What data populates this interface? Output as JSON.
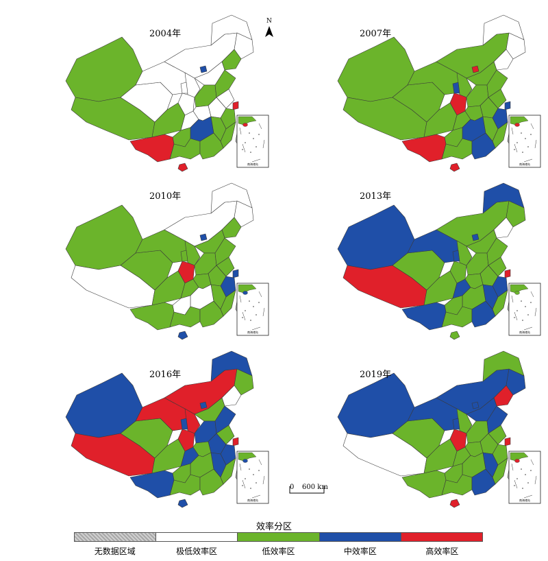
{
  "figure": {
    "north_label": "N",
    "scale": {
      "zero": "0",
      "distance": "600 km"
    },
    "inset_label": "南海诸岛"
  },
  "legend": {
    "title": "效率分区",
    "classes": [
      {
        "label": "无数据区域",
        "color": "#b8b8b8"
      },
      {
        "label": "极低效率区",
        "color": "#ffffff"
      },
      {
        "label": "低效率区",
        "color": "#6bb42b"
      },
      {
        "label": "中效率区",
        "color": "#1f4fa8"
      },
      {
        "label": "高效率区",
        "color": "#e0202a"
      }
    ]
  },
  "colors": {
    "none": "#b8b8b8",
    "very_low": "#ffffff",
    "low": "#6bb42b",
    "mid": "#1f4fa8",
    "high": "#e0202a",
    "border": "#333333"
  },
  "panels": [
    {
      "year": "2004年",
      "regions": {
        "xinjiang": "low",
        "xizang": "low",
        "qinghai": "very_low",
        "gansu": "very_low",
        "neimenggu": "very_low",
        "heilongjiang": "very_low",
        "jilin": "very_low",
        "liaoning": "low",
        "beijing": "mid",
        "hebei": "very_low",
        "shanxi": "very_low",
        "shaanxi": "very_low",
        "ningxia": "very_low",
        "henan": "low",
        "shandong": "low",
        "jiangsu": "very_low",
        "anhui": "very_low",
        "zhejiang": "low",
        "sichuan": "low",
        "chongqing": "very_low",
        "hubei": "very_low",
        "hunan": "mid",
        "jiangxi": "low",
        "fujian": "low",
        "yunnan": "high",
        "guizhou": "low",
        "guangxi": "low",
        "guangdong": "low",
        "hainan": "high",
        "taiwan": "none",
        "shanghai": "high"
      }
    },
    {
      "year": "2007年",
      "regions": {
        "xinjiang": "low",
        "xizang": "low",
        "qinghai": "low",
        "gansu": "low",
        "neimenggu": "low",
        "heilongjiang": "very_low",
        "jilin": "very_low",
        "liaoning": "very_low",
        "beijing": "high",
        "hebei": "low",
        "shanxi": "low",
        "shaanxi": "high",
        "ningxia": "mid",
        "henan": "low",
        "shandong": "low",
        "jiangsu": "low",
        "anhui": "low",
        "zhejiang": "mid",
        "sichuan": "low",
        "chongqing": "low",
        "hubei": "low",
        "hunan": "mid",
        "jiangxi": "low",
        "fujian": "low",
        "yunnan": "high",
        "guizhou": "low",
        "guangxi": "low",
        "guangdong": "mid",
        "hainan": "high",
        "taiwan": "none",
        "shanghai": "mid"
      }
    },
    {
      "year": "2010年",
      "regions": {
        "xinjiang": "low",
        "xizang": "very_low",
        "qinghai": "low",
        "gansu": "low",
        "neimenggu": "very_low",
        "heilongjiang": "very_low",
        "jilin": "very_low",
        "liaoning": "low",
        "beijing": "mid",
        "hebei": "low",
        "shanxi": "low",
        "shaanxi": "high",
        "ningxia": "low",
        "henan": "low",
        "shandong": "low",
        "jiangsu": "low",
        "anhui": "low",
        "zhejiang": "mid",
        "sichuan": "low",
        "chongqing": "low",
        "hubei": "low",
        "hunan": "very_low",
        "jiangxi": "low",
        "fujian": "low",
        "yunnan": "low",
        "guizhou": "very_low",
        "guangxi": "low",
        "guangdong": "low",
        "hainan": "mid",
        "taiwan": "none",
        "shanghai": "mid"
      }
    },
    {
      "year": "2013年",
      "regions": {
        "xinjiang": "mid",
        "xizang": "high",
        "qinghai": "low",
        "gansu": "mid",
        "neimenggu": "low",
        "heilongjiang": "mid",
        "jilin": "low",
        "liaoning": "very_low",
        "beijing": "mid",
        "hebei": "low",
        "shanxi": "low",
        "shaanxi": "low",
        "ningxia": "mid",
        "henan": "low",
        "shandong": "low",
        "jiangsu": "low",
        "anhui": "low",
        "zhejiang": "mid",
        "sichuan": "low",
        "chongqing": "mid",
        "hubei": "low",
        "hunan": "low",
        "jiangxi": "mid",
        "fujian": "low",
        "yunnan": "mid",
        "guizhou": "low",
        "guangxi": "low",
        "guangdong": "mid",
        "hainan": "low",
        "taiwan": "none",
        "shanghai": "high"
      }
    },
    {
      "year": "2016年",
      "regions": {
        "xinjiang": "mid",
        "xizang": "high",
        "qinghai": "low",
        "gansu": "high",
        "neimenggu": "high",
        "heilongjiang": "mid",
        "jilin": "low",
        "liaoning": "very_low",
        "beijing": "mid",
        "hebei": "low",
        "shanxi": "high",
        "shaanxi": "high",
        "ningxia": "mid",
        "henan": "mid",
        "shandong": "mid",
        "jiangsu": "low",
        "anhui": "mid",
        "zhejiang": "mid",
        "sichuan": "low",
        "chongqing": "mid",
        "hubei": "low",
        "hunan": "low",
        "jiangxi": "mid",
        "fujian": "low",
        "yunnan": "mid",
        "guizhou": "low",
        "guangxi": "low",
        "guangdong": "low",
        "hainan": "mid",
        "taiwan": "none",
        "shanghai": "high"
      }
    },
    {
      "year": "2019年",
      "regions": {
        "xinjiang": "mid",
        "xizang": "very_low",
        "qinghai": "low",
        "gansu": "mid",
        "neimenggu": "mid",
        "heilongjiang": "low",
        "jilin": "mid",
        "liaoning": "high",
        "beijing": "mid",
        "hebei": "mid",
        "shanxi": "low",
        "shaanxi": "high",
        "ningxia": "mid",
        "henan": "low",
        "shandong": "mid",
        "jiangsu": "low",
        "anhui": "low",
        "zhejiang": "low",
        "sichuan": "low",
        "chongqing": "low",
        "hubei": "low",
        "hunan": "low",
        "jiangxi": "mid",
        "fujian": "low",
        "yunnan": "low",
        "guizhou": "low",
        "guangxi": "low",
        "guangdong": "mid",
        "hainan": "high",
        "taiwan": "none",
        "shanghai": "high"
      }
    }
  ]
}
